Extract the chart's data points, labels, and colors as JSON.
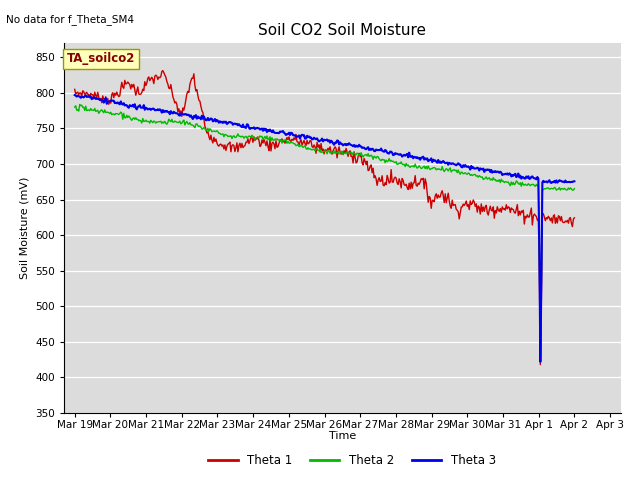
{
  "title": "Soil CO2 Soil Moisture",
  "xlabel": "Time",
  "ylabel": "Soil Moisture (mV)",
  "no_data_text": "No data for f_Theta_SM4",
  "legend_box_text": "TA_soilco2",
  "ylim": [
    350,
    870
  ],
  "yticks": [
    350,
    400,
    450,
    500,
    550,
    600,
    650,
    700,
    750,
    800,
    850
  ],
  "bg_color": "#dcdcdc",
  "fig_color": "#ffffff",
  "line_colors": {
    "theta1": "#cc0000",
    "theta2": "#00bb00",
    "theta3": "#0000ee"
  },
  "line_width": 1.0,
  "xtick_labels": [
    "Mar 19",
    "Mar 20",
    "Mar 21",
    "Mar 22",
    "Mar 23",
    "Mar 24",
    "Mar 25",
    "Mar 26",
    "Mar 27",
    "Mar 28",
    "Mar 29",
    "Mar 30",
    "Mar 31",
    "Apr 1",
    "Apr 2",
    "Apr 3"
  ],
  "legend_labels": [
    "Theta 1",
    "Theta 2",
    "Theta 3"
  ]
}
